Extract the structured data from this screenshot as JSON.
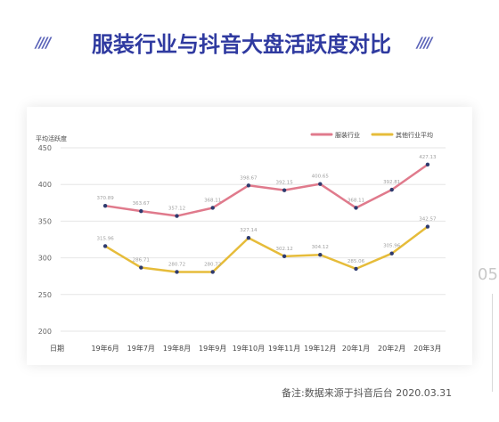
{
  "header": {
    "title": "服装行业与抖音大盘活跃度对比",
    "slashes_left": "////",
    "slashes_right": "////"
  },
  "side_number": "05",
  "footnote": "备注:数据来源于抖音后台 2020.03.31",
  "colors": {
    "title": "#2f3aa0",
    "series_clothing": "#e07a8c",
    "series_other": "#e6bc3a",
    "point": "#2e3a6e",
    "grid": "#e6e6e6"
  },
  "chart_data": {
    "type": "line",
    "ylabel": "平均活跃度",
    "xlabel": "日期",
    "ylim": [
      200,
      450
    ],
    "yticks": [
      200,
      250,
      300,
      350,
      400,
      450
    ],
    "categories": [
      "19年6月",
      "19年7月",
      "19年8月",
      "19年9月",
      "19年10月",
      "19年11月",
      "19年12月",
      "20年1月",
      "20年2月",
      "20年3月"
    ],
    "legend_position": "top-right",
    "series": [
      {
        "name": "服装行业",
        "values": [
          370.89,
          363.67,
          357.12,
          368.11,
          398.67,
          392.15,
          400.65,
          368.11,
          392.81,
          427.13
        ]
      },
      {
        "name": "其他行业平均",
        "values": [
          315.96,
          286.71,
          280.72,
          280.72,
          327.14,
          302.12,
          304.12,
          285.06,
          305.96,
          342.57
        ]
      }
    ]
  }
}
